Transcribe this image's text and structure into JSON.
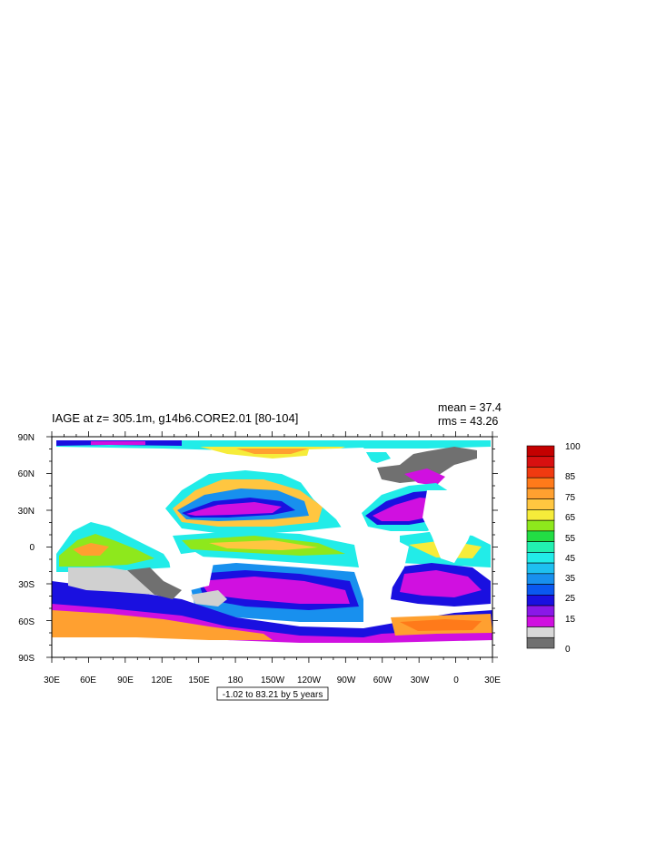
{
  "plot": {
    "title": "IAGE at z= 305.1m, g14b6.CORE2.01 [80-104]",
    "mean": "mean = 37.4",
    "rms": "rms = 43.26",
    "range_label": "-1.02 to 83.21 by 5 years"
  },
  "axes": {
    "lat_ticks": [
      "90N",
      "60N",
      "30N",
      "0",
      "30S",
      "60S",
      "90S"
    ],
    "lon_ticks": [
      "30E",
      "60E",
      "90E",
      "120E",
      "150E",
      "180",
      "150W",
      "120W",
      "90W",
      "60W",
      "30W",
      "0",
      "30E"
    ]
  },
  "colorbar": {
    "labels": [
      "100",
      "85",
      "75",
      "65",
      "55",
      "45",
      "35",
      "25",
      "15",
      "0"
    ],
    "colors": [
      "#c40000",
      "#d81010",
      "#f03a10",
      "#ff7a1a",
      "#ffa030",
      "#ffc640",
      "#f6ec3a",
      "#8ee81c",
      "#22dd44",
      "#22f0b0",
      "#22ece8",
      "#1ec0f0",
      "#1890ee",
      "#0a58f0",
      "#1a10e0",
      "#8a18e8",
      "#d010e0",
      "#d8d8d8",
      "#707070"
    ]
  },
  "colors": {
    "land": "#ffffff",
    "undefined": "#707070",
    "light_gray": "#d0d0d0"
  }
}
